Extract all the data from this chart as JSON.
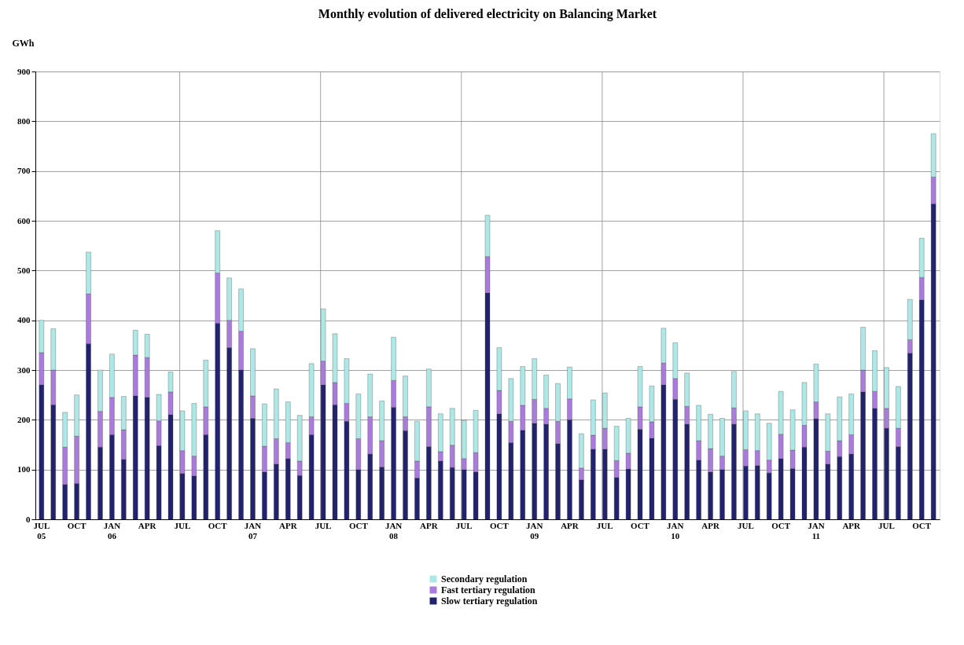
{
  "chart_data": {
    "type": "bar",
    "title": "Monthly evolution of delivered electricity on Balancing Market",
    "ylabel": "GWh",
    "categories": [
      "JUL\n05",
      null,
      null,
      "OCT",
      null,
      null,
      "JAN\n06",
      null,
      null,
      "APR",
      null,
      null,
      "JUL",
      null,
      null,
      "OCT",
      null,
      null,
      "JAN\n07",
      null,
      null,
      "APR",
      null,
      null,
      "JUL",
      null,
      null,
      "OCT",
      null,
      null,
      "JAN\n08",
      null,
      null,
      "APR",
      null,
      null,
      "JUL",
      null,
      null,
      "OCT",
      null,
      null,
      "JAN\n09",
      null,
      null,
      "APR",
      null,
      null,
      "JUL",
      null,
      null,
      "OCT",
      null,
      null,
      "JAN\n10",
      null,
      null,
      "APR",
      null,
      null,
      "JUL",
      null,
      null,
      "OCT",
      null,
      null,
      "JAN\n11",
      null,
      null,
      "APR",
      null,
      null,
      "JUL",
      null,
      null,
      "OCT",
      null
    ],
    "stacked": true,
    "series": [
      {
        "name": "Slow tertiary regulation",
        "color": "#22226e",
        "values": [
          270,
          230,
          70,
          72,
          353,
          145,
          170,
          120,
          248,
          245,
          148,
          210,
          92,
          87,
          170,
          394,
          345,
          300,
          203,
          95,
          111,
          122,
          88,
          170,
          270,
          230,
          197,
          100,
          131,
          105,
          225,
          178,
          83,
          146,
          117,
          104,
          100,
          95,
          455,
          212,
          154,
          179,
          193,
          191,
          152,
          200,
          79,
          141,
          141,
          84,
          101,
          181,
          163,
          270,
          241,
          191,
          119,
          95,
          100,
          191,
          107,
          108,
          93,
          122,
          102,
          145,
          202,
          111,
          126,
          131,
          256,
          223,
          183,
          146,
          334,
          441,
          634
        ]
      },
      {
        "name": "Fast tertiary regulation",
        "color": "#a97bdc",
        "values": [
          65,
          70,
          75,
          95,
          100,
          72,
          75,
          60,
          82,
          80,
          50,
          46,
          46,
          40,
          56,
          101,
          55,
          78,
          45,
          52,
          51,
          32,
          29,
          36,
          48,
          45,
          36,
          62,
          75,
          53,
          54,
          28,
          34,
          80,
          19,
          45,
          22,
          39,
          73,
          47,
          43,
          50,
          48,
          32,
          45,
          42,
          24,
          28,
          42,
          34,
          32,
          45,
          33,
          44,
          42,
          36,
          39,
          47,
          27,
          33,
          33,
          30,
          26,
          49,
          37,
          44,
          34,
          26,
          32,
          39,
          44,
          34,
          40,
          37,
          27,
          45,
          54
        ]
      },
      {
        "name": "Secondary regulation",
        "color": "#aee8e6",
        "values": [
          65,
          83,
          70,
          83,
          84,
          83,
          87,
          67,
          50,
          47,
          53,
          40,
          80,
          106,
          94,
          85,
          85,
          85,
          95,
          85,
          100,
          82,
          92,
          107,
          105,
          98,
          90,
          90,
          86,
          80,
          87,
          82,
          80,
          76,
          76,
          74,
          77,
          85,
          83,
          86,
          86,
          78,
          82,
          67,
          76,
          64,
          69,
          71,
          71,
          69,
          70,
          81,
          72,
          70,
          72,
          67,
          71,
          69,
          76,
          73,
          78,
          74,
          74,
          86,
          81,
          86,
          76,
          75,
          88,
          82,
          86,
          82,
          82,
          84,
          81,
          79,
          87
        ]
      }
    ],
    "ylim": [
      0,
      900
    ],
    "yticks": [
      0,
      100,
      200,
      300,
      400,
      500,
      600,
      700,
      800,
      900
    ],
    "grid": true,
    "legend": "bottom"
  }
}
